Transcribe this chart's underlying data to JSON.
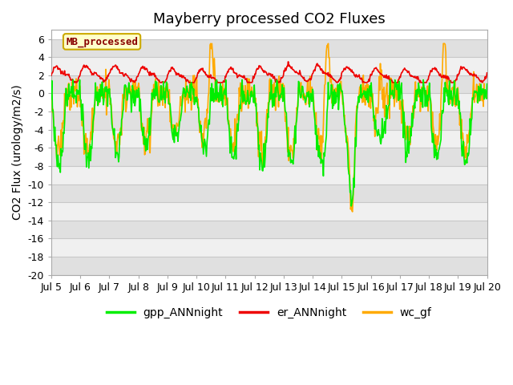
{
  "title": "Mayberry processed CO2 Fluxes",
  "ylabel": "CO2 Flux (urology/m2/s)",
  "ylim": [
    -20,
    7
  ],
  "yticks": [
    -20,
    -18,
    -16,
    -14,
    -12,
    -10,
    -8,
    -6,
    -4,
    -2,
    0,
    2,
    4,
    6
  ],
  "xtick_labels": [
    "Jul 5",
    "Jul 6",
    "Jul 7",
    "Jul 8",
    "Jul 9",
    "Jul 10",
    "Jul 11",
    "Jul 12",
    "Jul 13",
    "Jul 14",
    "Jul 15",
    "Jul 16",
    "Jul 17",
    "Jul 18",
    "Jul 19",
    "Jul 20"
  ],
  "legend_label": "MB_processed",
  "legend_box_facecolor": "#ffffcc",
  "legend_box_edge": "#ccaa00",
  "legend_text_color": "#880000",
  "gpp_color": "#00ee00",
  "er_color": "#ee0000",
  "wc_color": "#ffaa00",
  "fig_facecolor": "#ffffff",
  "plot_facecolor": "#ffffff",
  "band_light": "#f0f0f0",
  "band_dark": "#e0e0e0",
  "grid_color": "#c8c8c8",
  "linewidth": 1.2,
  "title_fontsize": 13,
  "axis_fontsize": 10,
  "tick_fontsize": 9,
  "n_days": 15,
  "n_per_day": 48
}
